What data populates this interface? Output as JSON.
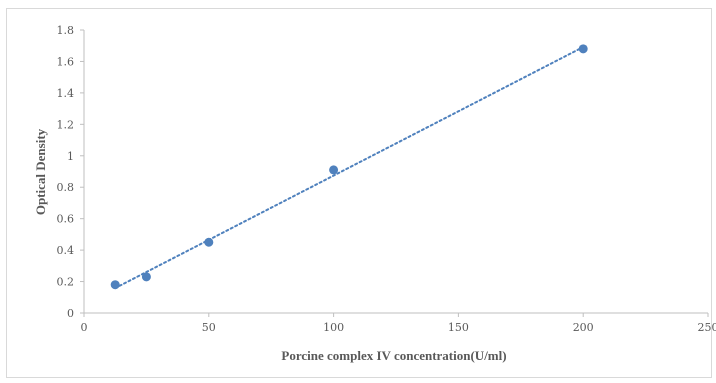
{
  "chart_data": {
    "type": "scatter",
    "title": "",
    "xlabel": "Porcine complex IV concentration(U/ml)",
    "ylabel": "Optical Density",
    "xlim": [
      0,
      250
    ],
    "ylim": [
      0,
      1.8
    ],
    "x_ticks": [
      "0",
      "50",
      "100",
      "150",
      "200",
      "250"
    ],
    "y_ticks": [
      "0",
      "0.2",
      "0.4",
      "0.6",
      "0.8",
      "1",
      "1.2",
      "1.4",
      "1.6",
      "1.8"
    ],
    "grid": false,
    "legend": "none",
    "series": [
      {
        "x": [
          12.5,
          25,
          50,
          100,
          200
        ],
        "y": [
          0.18,
          0.23,
          0.45,
          0.91,
          1.68
        ]
      }
    ],
    "trendline": {
      "style": "dotted",
      "type": "linear",
      "x_range": [
        12.5,
        200
      ]
    },
    "colors": {
      "marker": "#4f81bd",
      "trendline": "#4f81bd",
      "axis": "#bfbfbf",
      "text": "#595959"
    }
  }
}
